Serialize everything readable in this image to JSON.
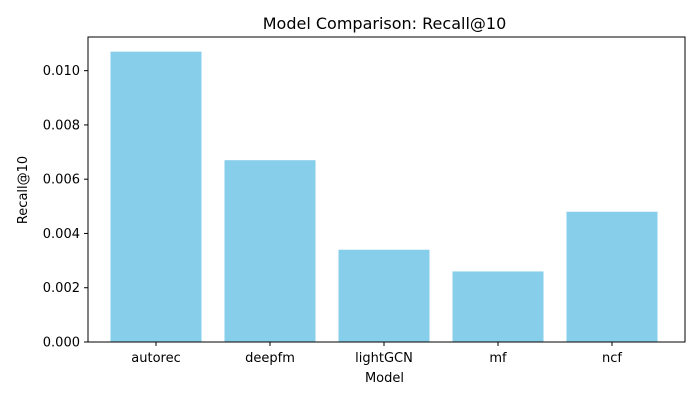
{
  "chart_data": {
    "type": "bar",
    "title": "Model Comparison: Recall@10",
    "xlabel": "Model",
    "ylabel": "Recall@10",
    "categories": [
      "autorec",
      "deepfm",
      "lightGCN",
      "mf",
      "ncf"
    ],
    "values": [
      0.0107,
      0.0067,
      0.0034,
      0.0026,
      0.0048
    ],
    "ylim": [
      0,
      0.01124
    ],
    "yticks": [
      0.0,
      0.002,
      0.004,
      0.006,
      0.008,
      0.01
    ],
    "ytick_labels": [
      "0.000",
      "0.002",
      "0.004",
      "0.006",
      "0.008",
      "0.010"
    ],
    "grid": false,
    "legend": "none",
    "bar_color": "#87ceeb"
  }
}
